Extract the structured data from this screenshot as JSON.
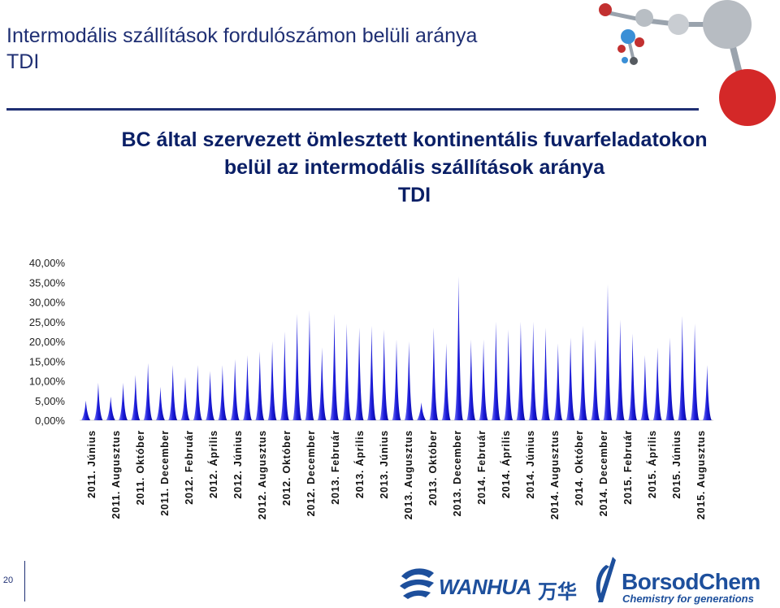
{
  "slide": {
    "title_line1": "Intermodális szállítások fordulószámon belüli aránya",
    "title_line2": "TDI",
    "page_number": "20"
  },
  "logos": {
    "wanhua_text": "WANHUA",
    "wanhua_cn": "万华",
    "borsod_text": "BorsodChem",
    "borsod_tagline": "Chemistry for generations"
  },
  "colors": {
    "title": "#1f2f73",
    "bars": "#1a1adb",
    "rule": "#1f2f73"
  },
  "chart_data": {
    "type": "area",
    "title": "BC által szervezett ömlesztett kontinentális fuvarfeladatokon belül az intermodális szállítások aránya",
    "subtitle": "TDI",
    "ylim": [
      0,
      40
    ],
    "yticks": [
      "40,00%",
      "35,00%",
      "30,00%",
      "25,00%",
      "20,00%",
      "15,00%",
      "10,00%",
      "5,00%",
      "0,00%"
    ],
    "legend": "none",
    "grid": false,
    "x_labels": [
      "2011. Június",
      "2011. Augusztus",
      "2011. Október",
      "2011. December",
      "2012. Február",
      "2012. Április",
      "2012. Június",
      "2012. Augusztus",
      "2012. Október",
      "2012. December",
      "2013. Február",
      "2013. Április",
      "2013. Június",
      "2013. Augusztus",
      "2013. Október",
      "2013. December",
      "2014. Február",
      "2014. Április",
      "2014. Június",
      "2014. Augusztus",
      "2014. Október",
      "2014. December",
      "2015. Február",
      "2015. Április",
      "2015. Június",
      "2015. Augusztus"
    ],
    "values": [
      5,
      9.5,
      6,
      9.5,
      11.5,
      14.5,
      8.5,
      14,
      11,
      14,
      12.5,
      14,
      15.5,
      16.5,
      17.5,
      20,
      22.5,
      27,
      28,
      18.5,
      27,
      24.5,
      23.5,
      24,
      23,
      20.5,
      20,
      4.5,
      23.5,
      19.5,
      36.5,
      20.5,
      20.5,
      25,
      23,
      25,
      25,
      23.5,
      19.5,
      21,
      24,
      20.5,
      34.5,
      25.5,
      22,
      16.5,
      18.5,
      21,
      26.5,
      24.5,
      14
    ]
  }
}
